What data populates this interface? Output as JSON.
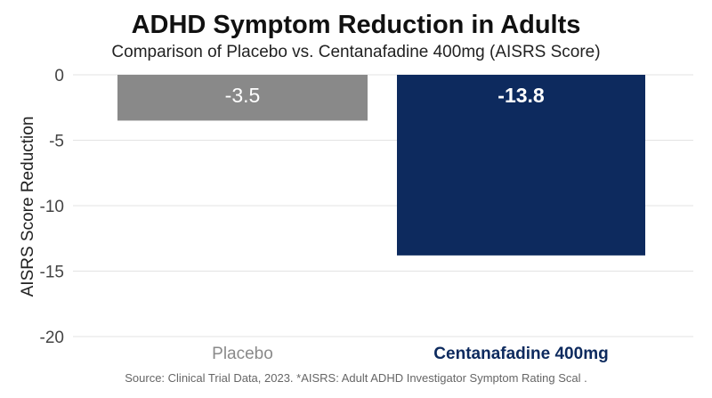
{
  "chart_data": {
    "type": "bar",
    "title": "ADHD Symptom Reduction in Adults",
    "subtitle": "Comparison of Placebo vs. Centanafadine 400mg (AISRS Score)",
    "ylabel": "AISRS Score Reduction",
    "xlabel": "",
    "ylim": [
      -20,
      0
    ],
    "yticks": [
      0,
      -5,
      -10,
      -15,
      -20
    ],
    "ytick_labels": [
      "0",
      "-5",
      "-10",
      "-15",
      "-20"
    ],
    "grid": true,
    "categories": [
      "Placebo",
      "Centanafadine 400mg"
    ],
    "values": [
      -3.5,
      -13.8
    ],
    "data_labels": [
      "-3.5",
      "-13.8"
    ],
    "colors": [
      "#898989",
      "#0d2a5e"
    ],
    "category_label_colors": [
      "#8a8a8a",
      "#0d2a5e"
    ],
    "value_label_colors": [
      "#ffffff",
      "#ffffff"
    ]
  },
  "footer": {
    "source": "Source: Clinical Trial Data, 2023. *AISRS: Adult ADHD Investigator Symptom Rating Scal ."
  }
}
